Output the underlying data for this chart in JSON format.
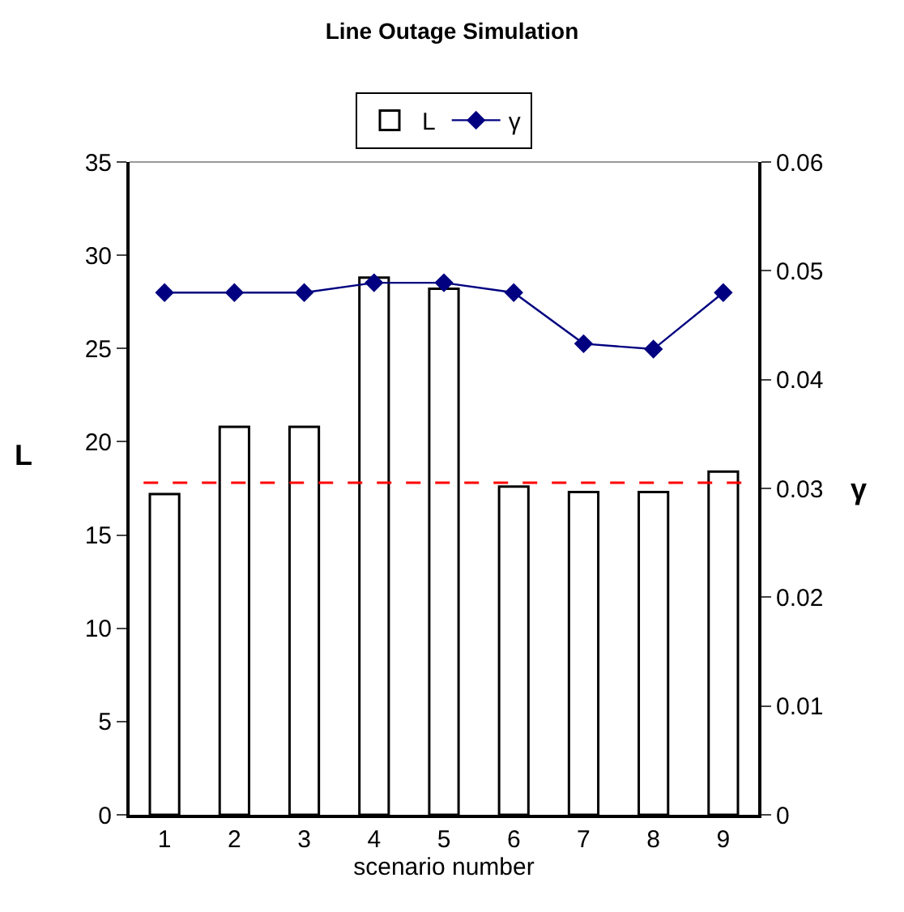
{
  "chart_data": {
    "type": "bar",
    "title": "Line Outage Simulation",
    "xlabel": "scenario number",
    "ylabel": "L",
    "y2label": "γ",
    "categories": [
      "1",
      "2",
      "3",
      "4",
      "5",
      "6",
      "7",
      "8",
      "9"
    ],
    "series": [
      {
        "name": "L",
        "color": "#ffffff",
        "values": [
          17.2,
          20.8,
          20.8,
          28.8,
          28.2,
          17.6,
          17.3,
          17.3,
          18.4
        ]
      },
      {
        "name": "γ",
        "type": "line",
        "axis": "y2",
        "color": "#000080",
        "marker": "diamond",
        "values": [
          0.048,
          0.048,
          0.048,
          0.0489,
          0.0489,
          0.048,
          0.0433,
          0.0428,
          0.048
        ]
      }
    ],
    "ylim": [
      0,
      35
    ],
    "yticks": [
      0,
      5,
      10,
      15,
      20,
      25,
      30,
      35
    ],
    "y2lim": [
      0,
      0.06
    ],
    "y2ticks": [
      0,
      0.01,
      0.02,
      0.03,
      0.04,
      0.05,
      0.06
    ],
    "ref_lines": [
      {
        "axis": "y",
        "value": 17.8,
        "color": "#ff0000",
        "line_style": "dashed"
      }
    ],
    "legend": "top"
  }
}
